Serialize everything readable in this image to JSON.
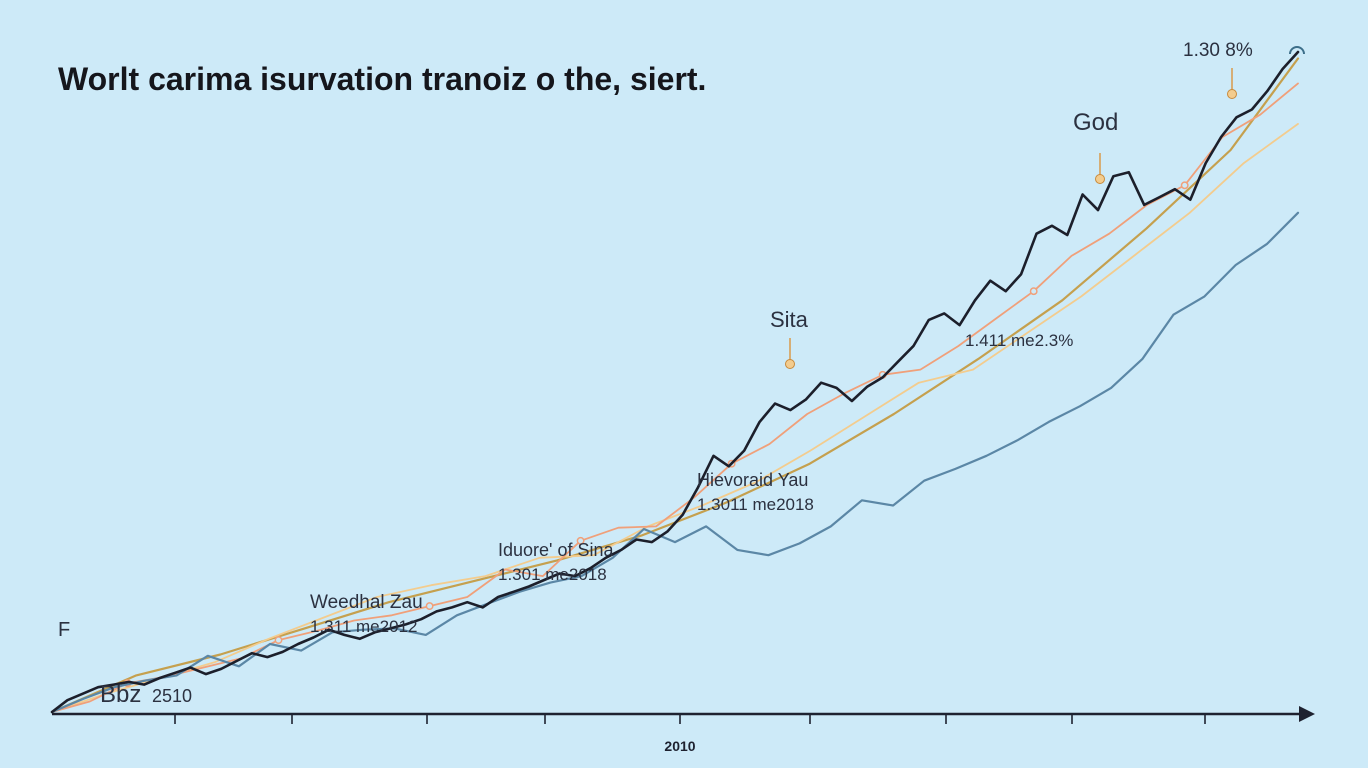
{
  "chart_data": {
    "type": "line",
    "title": "Worlt carima isurvation tranoiz o the, siert.",
    "xlabel": "",
    "ylabel": "",
    "x_tick_labels": [
      {
        "label": "2010"
      }
    ],
    "grid": false,
    "legend": "none",
    "series": [
      {
        "color": "#1c1f2b",
        "points": [
          [
            0,
            0
          ],
          [
            1,
            9
          ],
          [
            2,
            14
          ],
          [
            3,
            19
          ],
          [
            4,
            21
          ],
          [
            5,
            23
          ],
          [
            6,
            21
          ],
          [
            7,
            26
          ],
          [
            8,
            30
          ],
          [
            9,
            34
          ],
          [
            10,
            29
          ],
          [
            11,
            33
          ],
          [
            12,
            39
          ],
          [
            13,
            45
          ],
          [
            14,
            42
          ],
          [
            15,
            46
          ],
          [
            16,
            52
          ],
          [
            17,
            57
          ],
          [
            18,
            63
          ],
          [
            19,
            59
          ],
          [
            20,
            56
          ],
          [
            21,
            61
          ],
          [
            22,
            64
          ],
          [
            23,
            67
          ],
          [
            24,
            71
          ],
          [
            25,
            77
          ],
          [
            26,
            80
          ],
          [
            27,
            84
          ],
          [
            28,
            80
          ],
          [
            29,
            88
          ],
          [
            30,
            92
          ],
          [
            31,
            96
          ],
          [
            32,
            101
          ],
          [
            33,
            106
          ],
          [
            34,
            104
          ],
          [
            35,
            110
          ],
          [
            36,
            118
          ],
          [
            37,
            124
          ],
          [
            38,
            132
          ],
          [
            39,
            130
          ],
          [
            40,
            138
          ],
          [
            41,
            151
          ],
          [
            42,
            172
          ],
          [
            43,
            196
          ],
          [
            44,
            188
          ],
          [
            45,
            200
          ],
          [
            46,
            222
          ],
          [
            47,
            236
          ],
          [
            48,
            231
          ],
          [
            49,
            239
          ],
          [
            50,
            252
          ],
          [
            51,
            248
          ],
          [
            52,
            238
          ],
          [
            53,
            249
          ],
          [
            54,
            256
          ],
          [
            55,
            268
          ],
          [
            56,
            280
          ],
          [
            57,
            300
          ],
          [
            58,
            305
          ],
          [
            59,
            296
          ],
          [
            60,
            315
          ],
          [
            61,
            330
          ],
          [
            62,
            322
          ],
          [
            63,
            335
          ],
          [
            64,
            366
          ],
          [
            65,
            372
          ],
          [
            66,
            365
          ],
          [
            67,
            396
          ],
          [
            68,
            384
          ],
          [
            69,
            410
          ],
          [
            70,
            413
          ],
          [
            71,
            388
          ],
          [
            72,
            394
          ],
          [
            73,
            400
          ],
          [
            74,
            392
          ],
          [
            75,
            420
          ],
          [
            76,
            440
          ],
          [
            77,
            455
          ],
          [
            78,
            461
          ],
          [
            79,
            475
          ],
          [
            80,
            492
          ],
          [
            81,
            505
          ]
        ]
      },
      {
        "color": "#5b87a6",
        "points": [
          [
            0,
            0
          ],
          [
            2,
            10
          ],
          [
            4,
            19
          ],
          [
            6,
            24
          ],
          [
            8,
            28
          ],
          [
            10,
            43
          ],
          [
            12,
            35
          ],
          [
            14,
            52
          ],
          [
            16,
            47
          ],
          [
            18,
            61
          ],
          [
            20,
            63
          ],
          [
            22,
            64
          ],
          [
            24,
            59
          ],
          [
            26,
            74
          ],
          [
            28,
            83
          ],
          [
            30,
            92
          ],
          [
            32,
            99
          ],
          [
            34,
            104
          ],
          [
            36,
            118
          ],
          [
            38,
            140
          ],
          [
            40,
            130
          ],
          [
            42,
            142
          ],
          [
            44,
            124
          ],
          [
            46,
            120
          ],
          [
            48,
            129
          ],
          [
            50,
            142
          ],
          [
            52,
            162
          ],
          [
            54,
            158
          ],
          [
            56,
            177
          ],
          [
            58,
            186
          ],
          [
            60,
            196
          ],
          [
            62,
            208
          ],
          [
            64,
            222
          ],
          [
            66,
            234
          ],
          [
            68,
            248
          ],
          [
            70,
            270
          ],
          [
            72,
            304
          ],
          [
            74,
            318
          ],
          [
            76,
            342
          ],
          [
            78,
            358
          ],
          [
            80,
            382
          ]
        ]
      },
      {
        "color": "#f0a07a",
        "points": [
          [
            0,
            0
          ],
          [
            3,
            8
          ],
          [
            6,
            22
          ],
          [
            9,
            27
          ],
          [
            12,
            34
          ],
          [
            15,
            41
          ],
          [
            18,
            55
          ],
          [
            21,
            62
          ],
          [
            24,
            70
          ],
          [
            27,
            74
          ],
          [
            30,
            81
          ],
          [
            33,
            88
          ],
          [
            36,
            109
          ],
          [
            39,
            104
          ],
          [
            42,
            131
          ],
          [
            45,
            141
          ],
          [
            48,
            142
          ],
          [
            51,
            164
          ],
          [
            54,
            190
          ],
          [
            57,
            205
          ],
          [
            60,
            228
          ],
          [
            63,
            244
          ],
          [
            66,
            258
          ],
          [
            69,
            262
          ],
          [
            72,
            280
          ],
          [
            75,
            301
          ],
          [
            78,
            322
          ],
          [
            81,
            349
          ],
          [
            84,
            366
          ],
          [
            87,
            388
          ],
          [
            90,
            403
          ],
          [
            93,
            440
          ],
          [
            96,
            457
          ],
          [
            99,
            481
          ]
        ]
      },
      {
        "color": "#f3cc8e",
        "points": [
          [
            0,
            0
          ],
          [
            5,
            14
          ],
          [
            10,
            26
          ],
          [
            15,
            38
          ],
          [
            20,
            56
          ],
          [
            25,
            72
          ],
          [
            30,
            88
          ],
          [
            35,
            97
          ],
          [
            40,
            104
          ],
          [
            45,
            118
          ],
          [
            50,
            120
          ],
          [
            55,
            142
          ],
          [
            60,
            158
          ],
          [
            65,
            176
          ],
          [
            70,
            200
          ],
          [
            75,
            226
          ],
          [
            80,
            252
          ],
          [
            85,
            262
          ],
          [
            90,
            290
          ],
          [
            95,
            318
          ],
          [
            100,
            350
          ],
          [
            105,
            382
          ],
          [
            110,
            420
          ],
          [
            115,
            450
          ]
        ]
      },
      {
        "color": "#c5a04e",
        "points": [
          [
            0,
            0
          ],
          [
            10,
            28
          ],
          [
            20,
            44
          ],
          [
            30,
            64
          ],
          [
            40,
            84
          ],
          [
            50,
            100
          ],
          [
            60,
            116
          ],
          [
            70,
            135
          ],
          [
            80,
            160
          ],
          [
            90,
            190
          ],
          [
            100,
            228
          ],
          [
            110,
            270
          ],
          [
            120,
            315
          ],
          [
            130,
            370
          ],
          [
            140,
            430
          ],
          [
            148,
            500
          ]
        ]
      }
    ],
    "annotations": [
      {
        "name": "Bbz",
        "value": "2510"
      },
      {
        "name": "Weedhal Zau",
        "value": "1.311 me2012"
      },
      {
        "name": "Iduore' of Sina",
        "value": "1.301 me2018"
      },
      {
        "name": "Hievoraid Yau",
        "value": "1.3011 me2018"
      },
      {
        "name": "Sita",
        "value": ""
      },
      {
        "name": "",
        "value": "1.411 me2.3%"
      },
      {
        "name": "God",
        "value": ""
      },
      {
        "name": "",
        "value": "1.30 8%"
      }
    ],
    "colors": {
      "background": "#cdeaf8",
      "axis": "#1e2230"
    }
  }
}
